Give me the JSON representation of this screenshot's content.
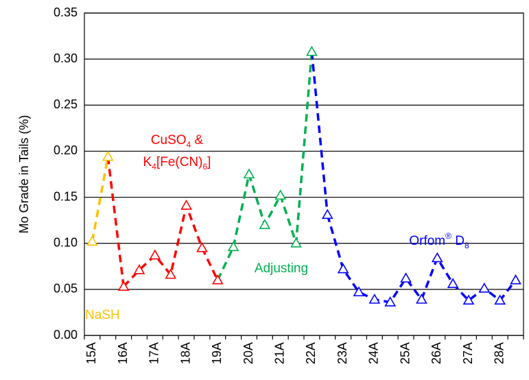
{
  "chart_data": {
    "type": "line",
    "ylabel": "Mo Grade in Tails (%)",
    "categories": [
      "15A",
      null,
      "16A",
      null,
      "17A",
      null,
      "18A",
      null,
      "19A",
      null,
      "20A",
      null,
      "21A",
      null,
      "22A",
      null,
      "23A",
      null,
      "24A",
      null,
      "25A",
      null,
      "26A",
      null,
      "27A",
      null,
      "28A",
      null
    ],
    "series": [
      {
        "name": "NaSH",
        "color": "#FFC000",
        "values": [
          0.102,
          0.194,
          null,
          null,
          null,
          null,
          null,
          null,
          null,
          null,
          null,
          null,
          null,
          null,
          null,
          null,
          null,
          null,
          null,
          null,
          null,
          null,
          null,
          null,
          null,
          null,
          null,
          null
        ]
      },
      {
        "name": "CuSO4 & K4[Fe(CN)6]",
        "color": "#FF0000",
        "values": [
          null,
          null,
          0.053,
          0.071,
          0.087,
          0.066,
          0.141,
          0.095,
          0.06,
          null,
          null,
          null,
          null,
          null,
          null,
          null,
          null,
          null,
          null,
          null,
          null,
          null,
          null,
          null,
          null,
          null,
          null,
          null
        ]
      },
      {
        "name": "Adjusting",
        "color": "#00B050",
        "values": [
          null,
          null,
          null,
          null,
          null,
          null,
          null,
          null,
          null,
          0.096,
          0.175,
          0.12,
          0.152,
          0.1,
          0.308,
          null,
          null,
          null,
          null,
          null,
          null,
          null,
          null,
          null,
          null,
          null,
          null,
          null
        ]
      },
      {
        "name": "Orfom® D8",
        "color": "#0000FF",
        "values": [
          null,
          null,
          null,
          null,
          null,
          null,
          null,
          null,
          null,
          null,
          null,
          null,
          null,
          null,
          null,
          0.131,
          0.072,
          0.047,
          0.039,
          0.036,
          0.062,
          0.039,
          0.084,
          0.056,
          0.038,
          0.051,
          0.038,
          0.06
        ]
      }
    ],
    "ylim": [
      0,
      0.35
    ],
    "yticks": [
      {
        "value": 0,
        "label": "0.00"
      },
      {
        "value": 0.05,
        "label": "0.05"
      },
      {
        "value": 0.1,
        "label": "0.10"
      },
      {
        "value": 0.15,
        "label": "0.15"
      },
      {
        "value": 0.2,
        "label": "0.20"
      },
      {
        "value": 0.25,
        "label": "0.25"
      },
      {
        "value": 0.3,
        "label": "0.30"
      },
      {
        "value": 0.35,
        "label": "0.35"
      }
    ],
    "grid": true,
    "line_style": "dashed",
    "marker": "triangle"
  }
}
